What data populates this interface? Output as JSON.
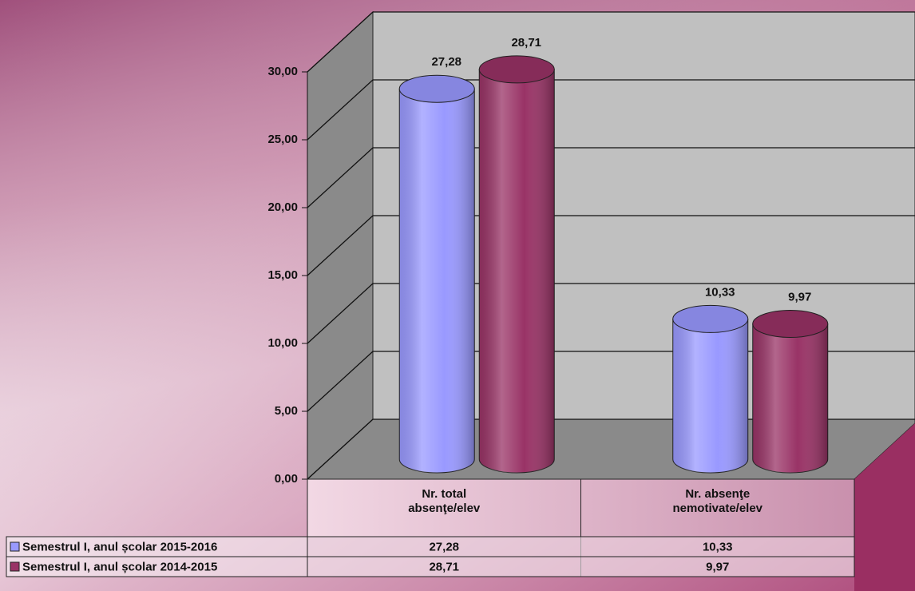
{
  "chart_data": {
    "type": "bar3d",
    "categories": [
      "Nr. total absenţe/elev",
      "Nr. absenţe nemotivate/elev"
    ],
    "series": [
      {
        "name": "Semestrul I, anul școlar 2015-2016",
        "color": "#9999ff",
        "values": [
          27.28,
          10.33
        ],
        "value_labels": [
          "27,28",
          "10,33"
        ]
      },
      {
        "name": "Semestrul I, anul școlar 2014-2015",
        "color": "#993366",
        "values": [
          28.71,
          9.97
        ],
        "value_labels": [
          "28,71",
          "9,97"
        ]
      }
    ],
    "ylim": [
      0,
      30
    ],
    "yticks": [
      {
        "value": 0,
        "label": "0,00"
      },
      {
        "value": 5,
        "label": "5,00"
      },
      {
        "value": 10,
        "label": "10,00"
      },
      {
        "value": 15,
        "label": "15,00"
      },
      {
        "value": 20,
        "label": "20,00"
      },
      {
        "value": 25,
        "label": "25,00"
      },
      {
        "value": 30,
        "label": "30,00"
      }
    ],
    "grid": true,
    "data_table": true
  }
}
